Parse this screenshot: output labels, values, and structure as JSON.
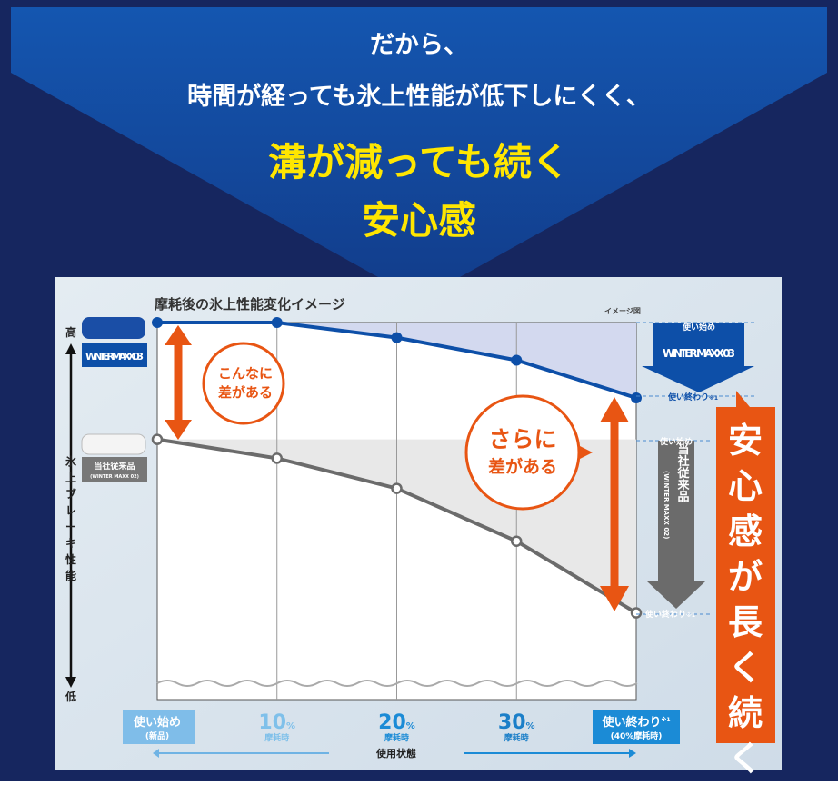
{
  "header": {
    "line1": "だから、",
    "line2": "時間が経っても氷上性能が低下しにくく、",
    "line3": "溝が減っても続く",
    "line4": "安心感"
  },
  "colors": {
    "navy": "#16265f",
    "blue": "#0d4fa8",
    "orange": "#e85513",
    "gray": "#6b6b6b",
    "yellow": "#ffe600"
  },
  "chart_data": {
    "type": "line",
    "title": "摩耗後の氷上性能変化イメージ",
    "note": "イメージ図",
    "ylabel": "氷上ブレーキ性能",
    "y_high": "高",
    "y_low": "低",
    "xlabel": "使用状態",
    "categories": [
      {
        "main": "使い始め",
        "sub": "(新品)"
      },
      {
        "main": "10",
        "unit": "%",
        "sub": "摩耗時"
      },
      {
        "main": "20",
        "unit": "%",
        "sub": "摩耗時"
      },
      {
        "main": "30",
        "unit": "%",
        "sub": "摩耗時"
      },
      {
        "main": "使い終わり",
        "sup": "※1",
        "sub": "(40%摩耗時)"
      }
    ],
    "x": [
      0,
      10,
      20,
      30,
      40
    ],
    "ylim": [
      0,
      100
    ],
    "series": [
      {
        "name": "WINTER MAXX 03",
        "values": [
          100,
          100,
          96,
          90,
          80
        ],
        "color": "#0d4fa8"
      },
      {
        "name": "当社従来品",
        "sub": "(WINTER MAXX 02)",
        "values": [
          69,
          64,
          56,
          42,
          23
        ],
        "color": "#6b6b6b"
      }
    ],
    "annotations": {
      "gap1": [
        "こんなに",
        "差がある"
      ],
      "gap2": [
        "さらに",
        "差がある"
      ],
      "start": "使い始め",
      "end": "使い終わり",
      "end_sup": "※1",
      "banner": "安心感が長く続く"
    }
  }
}
